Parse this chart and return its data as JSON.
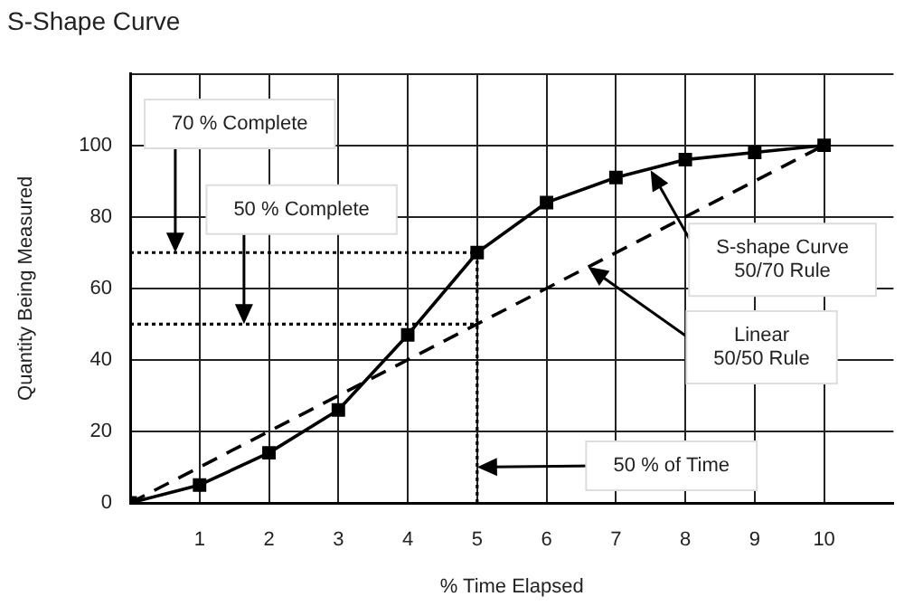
{
  "chart_data": {
    "type": "line",
    "title": "S-Shape Curve",
    "xlabel": "% Time Elapsed",
    "ylabel": "Quantity Being Measured",
    "x": [
      0,
      1,
      2,
      3,
      4,
      5,
      6,
      7,
      8,
      9,
      10
    ],
    "series": [
      {
        "color": "#000000",
        "marker": "square",
        "line_style": "solid",
        "values": [
          0,
          5,
          14,
          26,
          47,
          70,
          84,
          91,
          96,
          98,
          100
        ]
      },
      {
        "color": "#000000",
        "marker": "none",
        "line_style": "dashed",
        "x": [
          0,
          10
        ],
        "values": [
          0,
          100
        ]
      }
    ],
    "xlim": [
      0,
      11
    ],
    "xticks": [
      {
        "value": 0,
        "label": null
      },
      1,
      2,
      3,
      4,
      5,
      6,
      7,
      8,
      9,
      10
    ],
    "ylim": [
      0,
      120
    ],
    "yticks": [
      0,
      20,
      40,
      60,
      80,
      100,
      {
        "value": 120,
        "label": null
      }
    ],
    "grid": true,
    "legend": false,
    "ref_lines": [
      {
        "axis": "y",
        "value": 70,
        "line_style": "dotted",
        "color": "#000000"
      },
      {
        "axis": "y",
        "value": 50,
        "line_style": "dotted",
        "color": "#000000"
      },
      {
        "axis": "x",
        "value": 5,
        "line_style": "dotted",
        "color": "#000000"
      }
    ],
    "annotations": [
      {
        "text": "70 % Complete",
        "x": 0.65,
        "y": 70
      },
      {
        "text": "50 % Complete",
        "x": 1.64,
        "y": 50
      },
      {
        "text": "S-shape Curve 50/70 Rule",
        "x": 7.5,
        "y": 93
      },
      {
        "text": "Linear 50/50 Rule",
        "x": 6.6,
        "y": 66
      },
      {
        "text": "50 % of Time",
        "x": 5,
        "y": 10
      }
    ]
  }
}
